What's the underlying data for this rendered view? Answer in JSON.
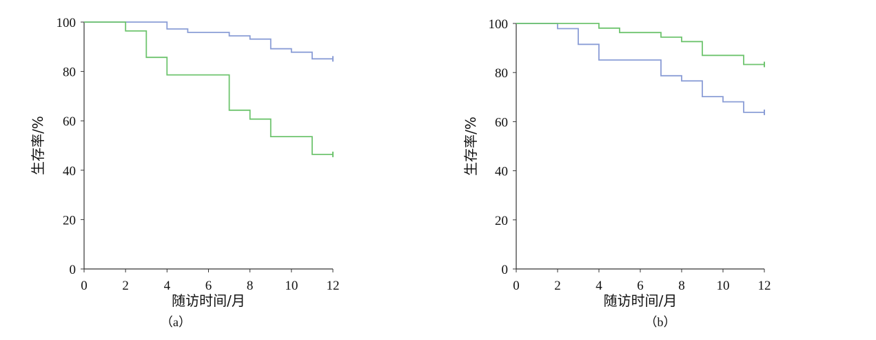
{
  "chart_data": [
    {
      "type": "line",
      "panel_label": "（a）",
      "xlabel": "随访时间/月",
      "ylabel": "生存率/%",
      "xlim": [
        0,
        12
      ],
      "ylim": [
        0,
        100
      ],
      "xticks": [
        "0",
        "2",
        "4",
        "6",
        "8",
        "10",
        "12"
      ],
      "yticks": [
        "0",
        "20",
        "40",
        "60",
        "80",
        "100"
      ],
      "series": [
        {
          "color": "#8a9dd6",
          "x": [
            0,
            4,
            4,
            5,
            5,
            7,
            7,
            8,
            8,
            9,
            9,
            10,
            10,
            11,
            11,
            12
          ],
          "y": [
            100,
            100,
            97.2,
            97.2,
            95.8,
            95.8,
            94.4,
            94.4,
            93.1,
            93.1,
            89.2,
            89.2,
            87.8,
            87.8,
            85.1,
            85.1
          ]
        },
        {
          "color": "#6ec46e",
          "x": [
            0,
            2,
            2,
            3,
            3,
            4,
            4,
            7,
            7,
            8,
            8,
            9,
            9,
            11,
            11,
            12
          ],
          "y": [
            100,
            100,
            96.4,
            96.4,
            85.7,
            85.7,
            78.6,
            78.6,
            64.3,
            64.3,
            60.7,
            60.7,
            53.6,
            53.6,
            46.4,
            46.4
          ]
        }
      ]
    },
    {
      "type": "line",
      "panel_label": "（b）",
      "xlabel": "随访时间/月",
      "ylabel": "生存率/%",
      "xlim": [
        0,
        12
      ],
      "ylim": [
        0,
        100
      ],
      "xticks": [
        "0",
        "2",
        "4",
        "6",
        "8",
        "10",
        "12"
      ],
      "yticks": [
        "0",
        "20",
        "40",
        "60",
        "80",
        "100"
      ],
      "series": [
        {
          "color": "#8a9dd6",
          "x": [
            0,
            2,
            2,
            3,
            3,
            4,
            4,
            7,
            7,
            8,
            8,
            9,
            9,
            10,
            10,
            11,
            11,
            12
          ],
          "y": [
            100,
            100,
            97.9,
            97.9,
            91.5,
            91.5,
            85.1,
            85.1,
            78.7,
            78.7,
            76.6,
            76.6,
            70.2,
            70.2,
            68.1,
            68.1,
            63.8,
            63.8
          ]
        },
        {
          "color": "#6ec46e",
          "x": [
            0,
            4,
            4,
            5,
            5,
            7,
            7,
            8,
            8,
            9,
            9,
            11,
            11,
            12
          ],
          "y": [
            100,
            100,
            98.1,
            98.1,
            96.3,
            96.3,
            94.4,
            94.4,
            92.6,
            92.6,
            87.0,
            87.0,
            83.3,
            83.3
          ]
        }
      ]
    }
  ]
}
